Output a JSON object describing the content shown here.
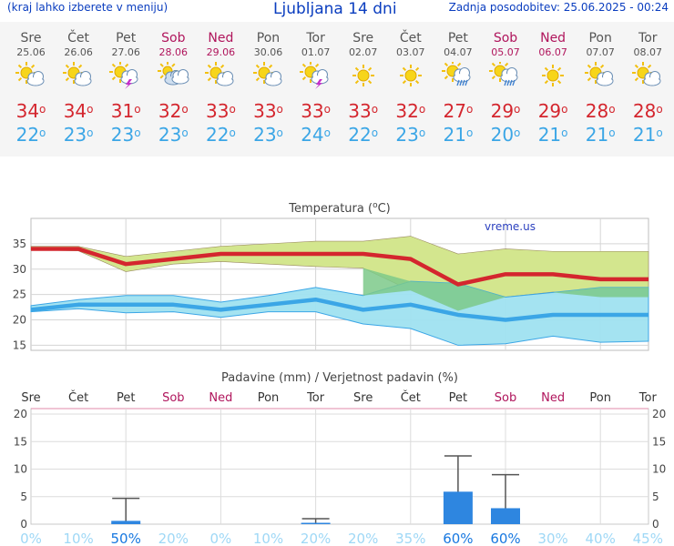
{
  "header": {
    "menu_hint": "(kraj lahko izberete v meniju)",
    "title": "Ljubljana 14 dni",
    "updated": "Zadnja posodobitev: 25.06.2025 - 00:24"
  },
  "degree_symbol": "o",
  "days": [
    {
      "name": "Sre",
      "date": "25.06",
      "weekend": false,
      "icon": "sun-cloud-icon",
      "tmax": 34,
      "tmin": 22
    },
    {
      "name": "Čet",
      "date": "26.06",
      "weekend": false,
      "icon": "sun-cloud-icon",
      "tmax": 34,
      "tmin": 23
    },
    {
      "name": "Pet",
      "date": "27.06",
      "weekend": false,
      "icon": "sun-cloud-storm-icon",
      "tmax": 31,
      "tmin": 23
    },
    {
      "name": "Sob",
      "date": "28.06",
      "weekend": true,
      "icon": "sun-cloudy-icon",
      "tmax": 32,
      "tmin": 23
    },
    {
      "name": "Ned",
      "date": "29.06",
      "weekend": true,
      "icon": "sun-cloud-icon",
      "tmax": 33,
      "tmin": 22
    },
    {
      "name": "Pon",
      "date": "30.06",
      "weekend": false,
      "icon": "sun-cloud-icon",
      "tmax": 33,
      "tmin": 23
    },
    {
      "name": "Tor",
      "date": "01.07",
      "weekend": false,
      "icon": "sun-cloud-storm-icon",
      "tmax": 33,
      "tmin": 24
    },
    {
      "name": "Sre",
      "date": "02.07",
      "weekend": false,
      "icon": "sun-icon",
      "tmax": 33,
      "tmin": 22
    },
    {
      "name": "Čet",
      "date": "03.07",
      "weekend": false,
      "icon": "sun-icon",
      "tmax": 32,
      "tmin": 23
    },
    {
      "name": "Pet",
      "date": "04.07",
      "weekend": false,
      "icon": "sun-rain-icon",
      "tmax": 27,
      "tmin": 21
    },
    {
      "name": "Sob",
      "date": "05.07",
      "weekend": true,
      "icon": "sun-rain-icon",
      "tmax": 29,
      "tmin": 20
    },
    {
      "name": "Ned",
      "date": "06.07",
      "weekend": true,
      "icon": "sun-icon",
      "tmax": 29,
      "tmin": 21
    },
    {
      "name": "Pon",
      "date": "07.07",
      "weekend": false,
      "icon": "sun-cloud-icon",
      "tmax": 28,
      "tmin": 21
    },
    {
      "name": "Tor",
      "date": "08.07",
      "weekend": false,
      "icon": "sun-cloud-icon",
      "tmax": 28,
      "tmin": 21
    }
  ],
  "colors": {
    "max": "#d4262e",
    "min": "#3ba6e6",
    "weekend": "#b0155c",
    "band_max": "#d3e68e",
    "band_min": "#9fe2f0",
    "overlap": "#7cc98a",
    "bar": "#2e86e0",
    "prob": "#1878e0"
  },
  "chart_data": [
    {
      "type": "line",
      "title": "Temperatura (oC)",
      "watermark": "vreme.us",
      "ylim": [
        14,
        40
      ],
      "yticks": [
        15,
        20,
        25,
        30,
        35
      ],
      "grid": true,
      "series": [
        {
          "values": [
            34,
            34,
            31,
            32,
            33,
            33,
            33,
            33,
            32,
            27,
            29,
            29,
            28,
            28
          ]
        },
        {
          "values": [
            22,
            23,
            23,
            23,
            22,
            23,
            24,
            22,
            23,
            21,
            20,
            21,
            21,
            21
          ]
        }
      ],
      "max_band_hi": [
        34.5,
        34.5,
        32.5,
        33.5,
        34.5,
        35,
        35.5,
        35.5,
        36.5,
        33,
        34,
        33.5,
        33.5,
        33.5
      ],
      "max_band_lo": [
        33.8,
        33.6,
        29.5,
        31,
        31.5,
        31,
        30.5,
        30.2,
        25.8,
        21.8,
        24.5,
        25.5,
        24.5,
        24.5
      ],
      "min_band_hi": [
        22.8,
        24,
        24.8,
        24.8,
        23.5,
        24.8,
        26.4,
        24.8,
        27.6,
        27.2,
        24.5,
        25.4,
        26.4,
        26.4
      ],
      "min_band_lo": [
        21.6,
        22.2,
        21.4,
        21.6,
        20.5,
        21.6,
        21.6,
        19.2,
        18.3,
        15,
        15.3,
        16.8,
        15.6,
        15.8
      ]
    },
    {
      "type": "bar",
      "title": "Padavine (mm) / Verjetnost padavin (%)",
      "categories": [
        "Sre",
        "Čet",
        "Pet",
        "Sob",
        "Ned",
        "Pon",
        "Tor",
        "Sre",
        "Čet",
        "Pet",
        "Sob",
        "Ned",
        "Pon",
        "Tor"
      ],
      "weekend": [
        false,
        false,
        false,
        true,
        true,
        false,
        false,
        false,
        false,
        false,
        true,
        true,
        false,
        false
      ],
      "ylim": [
        0,
        21
      ],
      "yticks": [
        0,
        5,
        10,
        15,
        20
      ],
      "values": [
        0,
        0,
        0.6,
        0,
        0,
        0,
        0.1,
        0,
        0,
        5.9,
        2.9,
        0,
        0,
        0
      ],
      "err_hi": [
        0,
        0,
        4.7,
        0,
        0,
        0,
        1,
        0,
        0,
        12.4,
        9,
        0,
        0,
        0
      ],
      "probability": [
        "0%",
        "10%",
        "50%",
        "20%",
        "0%",
        "10%",
        "20%",
        "20%",
        "35%",
        "60%",
        "60%",
        "30%",
        "40%",
        "45%"
      ]
    }
  ]
}
